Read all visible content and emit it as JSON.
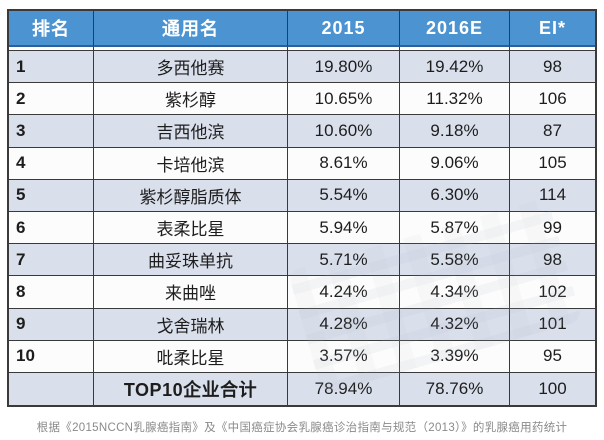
{
  "colors": {
    "header_bg": "#4C93D2",
    "header_text": "#FFFFFF",
    "header_bottom_line": "#2B5F9E",
    "row_alt_bg": "#D9DFEB",
    "row_bg": "#FCFCFC",
    "grid_line": "#3A3A3A",
    "text": "#1D1D1D",
    "footer_text": "#8A8A8A"
  },
  "chart_data": {
    "type": "table",
    "columns": [
      "排名",
      "通用名",
      "2015",
      "2016E",
      "EI*"
    ],
    "rows": [
      {
        "rank": "1",
        "name": "多西他赛",
        "y2015": "19.80%",
        "y2016e": "19.42%",
        "ei": "98"
      },
      {
        "rank": "2",
        "name": "紫杉醇",
        "y2015": "10.65%",
        "y2016e": "11.32%",
        "ei": "106"
      },
      {
        "rank": "3",
        "name": "吉西他滨",
        "y2015": "10.60%",
        "y2016e": "9.18%",
        "ei": "87"
      },
      {
        "rank": "4",
        "name": "卡培他滨",
        "y2015": "8.61%",
        "y2016e": "9.06%",
        "ei": "105"
      },
      {
        "rank": "5",
        "name": "紫杉醇脂质体",
        "y2015": "5.54%",
        "y2016e": "6.30%",
        "ei": "114"
      },
      {
        "rank": "6",
        "name": "表柔比星",
        "y2015": "5.94%",
        "y2016e": "5.87%",
        "ei": "99"
      },
      {
        "rank": "7",
        "name": "曲妥珠单抗",
        "y2015": "5.71%",
        "y2016e": "5.58%",
        "ei": "98"
      },
      {
        "rank": "8",
        "name": "来曲唑",
        "y2015": "4.24%",
        "y2016e": "4.34%",
        "ei": "102"
      },
      {
        "rank": "9",
        "name": "戈舍瑞林",
        "y2015": "4.28%",
        "y2016e": "4.32%",
        "ei": "101"
      },
      {
        "rank": "10",
        "name": "吡柔比星",
        "y2015": "3.57%",
        "y2016e": "3.39%",
        "ei": "95"
      },
      {
        "rank": "",
        "name": "TOP10企业合计",
        "y2015": "78.94%",
        "y2016e": "78.76%",
        "ei": "100"
      }
    ],
    "source_note": "根据《2015NCCN乳腺癌指南》及《中国癌症协会乳腺癌诊治指南与规范（2013）》的乳腺癌用药统计"
  }
}
